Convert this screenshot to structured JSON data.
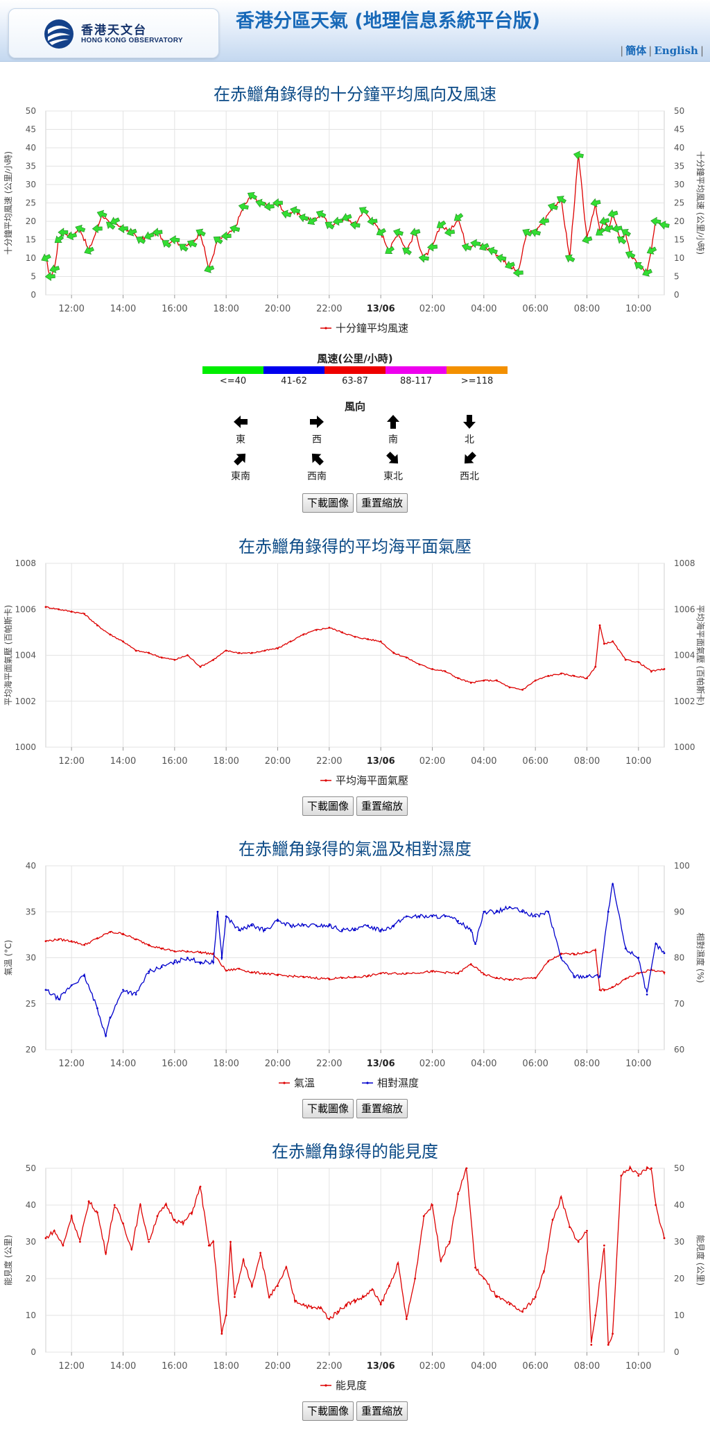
{
  "header": {
    "logo_cn": "香港天文台",
    "logo_en": "HONG KONG OBSERVATORY",
    "title": "香港分區天氣 (地理信息系統平台版)",
    "lang": [
      {
        "label": "簡体"
      },
      {
        "label": "English"
      }
    ]
  },
  "buttons": {
    "download": "下載圖像",
    "reset": "重置縮放"
  },
  "wind_legend": {
    "speed_title": "風速(公里/小時)",
    "bands": [
      {
        "label": "<=40",
        "color": "#00ee00"
      },
      {
        "label": "41-62",
        "color": "#0000ee"
      },
      {
        "label": "63-87",
        "color": "#ee0000"
      },
      {
        "label": "88-117",
        "color": "#ee00ee"
      },
      {
        "label": ">=118",
        "color": "#f39000"
      }
    ],
    "dir_title": "風向",
    "directions": [
      {
        "label": "東",
        "icon": "arrow-left-icon"
      },
      {
        "label": "西",
        "icon": "arrow-right-icon"
      },
      {
        "label": "南",
        "icon": "arrow-up-icon"
      },
      {
        "label": "北",
        "icon": "arrow-down-icon"
      },
      {
        "label": "東南",
        "icon": "arrow-up-left-icon"
      },
      {
        "label": "西南",
        "icon": "arrow-up-right-icon"
      },
      {
        "label": "東北",
        "icon": "arrow-down-left-icon"
      },
      {
        "label": "西北",
        "icon": "arrow-down-right-icon"
      }
    ]
  },
  "chart_data": [
    {
      "type": "line",
      "title": "在赤鱲角錄得的十分鐘平均風向及風速",
      "ylabel": "十分鐘平均風速 (公里/小時)",
      "ylabel_right": "十分鐘平均風速 (公里/小時)",
      "ylim": [
        0,
        50
      ],
      "yticks": [
        0,
        5,
        10,
        15,
        20,
        25,
        30,
        35,
        40,
        45,
        50
      ],
      "xticks": [
        "12:00",
        "14:00",
        "16:00",
        "18:00",
        "20:00",
        "22:00",
        "13/06",
        "02:00",
        "04:00",
        "06:00",
        "08:00",
        "10:00"
      ],
      "xrange_hours": [
        11,
        35
      ],
      "grid": true,
      "legend_position": "bottom",
      "series": [
        {
          "name": "十分鐘平均風速",
          "color": "#dd0000",
          "marker": "direction-arrow",
          "marker_color": "#33dd33",
          "x": [
            11.0,
            11.17,
            11.33,
            11.5,
            11.67,
            12.0,
            12.33,
            12.67,
            13.0,
            13.17,
            13.5,
            13.67,
            14.0,
            14.33,
            14.67,
            15.0,
            15.33,
            15.67,
            16.0,
            16.33,
            16.67,
            17.0,
            17.33,
            17.67,
            18.0,
            18.33,
            18.67,
            19.0,
            19.33,
            19.67,
            20.0,
            20.33,
            20.67,
            21.0,
            21.33,
            21.67,
            22.0,
            22.33,
            22.67,
            23.0,
            23.33,
            23.67,
            24.0,
            24.33,
            24.67,
            25.0,
            25.33,
            25.67,
            26.0,
            26.33,
            26.67,
            27.0,
            27.33,
            27.67,
            28.0,
            28.33,
            28.67,
            29.0,
            29.33,
            29.67,
            30.0,
            30.33,
            30.67,
            31.0,
            31.33,
            31.67,
            32.0,
            32.33,
            32.5,
            32.67,
            32.83,
            33.0,
            33.17,
            33.33,
            33.5,
            33.67,
            34.0,
            34.33,
            34.5,
            34.67,
            35.0
          ],
          "y": [
            10,
            5,
            7,
            15,
            17,
            16,
            18,
            12,
            18,
            22,
            19,
            20,
            18,
            17,
            15,
            16,
            17,
            14,
            15,
            13,
            14,
            17,
            7,
            15,
            16,
            18,
            24,
            27,
            25,
            24,
            25,
            22,
            23,
            21,
            20,
            22,
            19,
            20,
            21,
            19,
            23,
            20,
            17,
            12,
            17,
            12,
            17,
            10,
            13,
            19,
            17,
            21,
            13,
            14,
            13,
            12,
            10,
            8,
            6,
            17,
            17,
            20,
            24,
            26,
            10,
            38,
            15,
            25,
            17,
            20,
            18,
            22,
            18,
            15,
            17,
            11,
            8,
            6,
            12,
            20,
            19
          ]
        }
      ]
    },
    {
      "type": "line",
      "title": "在赤鱲角錄得的平均海平面氣壓",
      "ylabel": "平均海平面氣壓 (百帕斯卡)",
      "ylabel_right": "平均海平面氣壓 (百帕斯卡)",
      "ylim": [
        1000,
        1008
      ],
      "yticks": [
        1000,
        1002,
        1004,
        1006,
        1008
      ],
      "xticks": [
        "12:00",
        "14:00",
        "16:00",
        "18:00",
        "20:00",
        "22:00",
        "13/06",
        "02:00",
        "04:00",
        "06:00",
        "08:00",
        "10:00"
      ],
      "xrange_hours": [
        11,
        35
      ],
      "grid": true,
      "legend_position": "bottom",
      "series": [
        {
          "name": "平均海平面氣壓",
          "color": "#dd0000",
          "x": [
            11.0,
            11.5,
            12.0,
            12.5,
            13.0,
            13.5,
            14.0,
            14.5,
            15.0,
            15.5,
            16.0,
            16.5,
            17.0,
            17.5,
            18.0,
            18.5,
            19.0,
            19.5,
            20.0,
            20.5,
            21.0,
            21.5,
            22.0,
            22.5,
            23.0,
            23.5,
            24.0,
            24.5,
            25.0,
            25.5,
            26.0,
            26.5,
            27.0,
            27.5,
            28.0,
            28.5,
            29.0,
            29.5,
            30.0,
            30.5,
            31.0,
            31.5,
            32.0,
            32.33,
            32.5,
            32.67,
            33.0,
            33.5,
            34.0,
            34.5,
            35.0
          ],
          "y": [
            1006.1,
            1006.0,
            1005.9,
            1005.8,
            1005.3,
            1004.9,
            1004.6,
            1004.2,
            1004.1,
            1003.9,
            1003.8,
            1004.0,
            1003.5,
            1003.8,
            1004.2,
            1004.1,
            1004.1,
            1004.2,
            1004.3,
            1004.6,
            1004.9,
            1005.1,
            1005.2,
            1005.0,
            1004.8,
            1004.7,
            1004.6,
            1004.1,
            1003.9,
            1003.6,
            1003.4,
            1003.3,
            1003.0,
            1002.8,
            1002.9,
            1002.9,
            1002.6,
            1002.5,
            1002.9,
            1003.1,
            1003.2,
            1003.1,
            1003.0,
            1003.5,
            1005.3,
            1004.5,
            1004.6,
            1003.8,
            1003.7,
            1003.3,
            1003.4
          ]
        }
      ]
    },
    {
      "type": "line",
      "title": "在赤鱲角錄得的氣溫及相對濕度",
      "ylabel": "氣溫 (°C)",
      "ylabel_right": "相對濕度 (%)",
      "ylim": [
        20,
        40
      ],
      "ylim_right": [
        60,
        100
      ],
      "yticks": [
        20,
        25,
        30,
        35,
        40
      ],
      "yticks_right": [
        60,
        70,
        80,
        90,
        100
      ],
      "xticks": [
        "12:00",
        "14:00",
        "16:00",
        "18:00",
        "20:00",
        "22:00",
        "13/06",
        "02:00",
        "04:00",
        "06:00",
        "08:00",
        "10:00"
      ],
      "xrange_hours": [
        11,
        35
      ],
      "grid": true,
      "legend_position": "bottom",
      "series": [
        {
          "name": "氣溫",
          "color": "#dd0000",
          "axis": "left",
          "x": [
            11,
            11.5,
            12,
            12.5,
            13,
            13.5,
            14,
            14.5,
            15,
            15.5,
            16,
            16.5,
            17,
            17.5,
            18,
            18.5,
            19,
            19.5,
            20,
            21,
            22,
            22.5,
            23,
            23.5,
            24,
            25,
            26,
            27,
            27.5,
            28,
            28.5,
            29,
            30,
            30.5,
            31,
            31.5,
            32,
            32.33,
            32.5,
            32.67,
            33,
            33.5,
            34,
            34.5,
            35
          ],
          "y": [
            31.8,
            32.0,
            31.8,
            31.4,
            32.1,
            32.8,
            32.6,
            32.0,
            31.4,
            31.0,
            30.7,
            30.7,
            30.6,
            30.4,
            28.6,
            28.8,
            28.4,
            28.3,
            28.1,
            27.9,
            27.7,
            27.8,
            27.9,
            28.0,
            28.3,
            28.3,
            28.5,
            28.3,
            29.3,
            28.2,
            27.8,
            27.6,
            27.8,
            29.6,
            30.4,
            30.4,
            30.6,
            30.8,
            26.5,
            26.5,
            26.8,
            27.7,
            28.3,
            28.7,
            28.4
          ]
        },
        {
          "name": "相對濕度",
          "color": "#0000cc",
          "axis": "right",
          "x": [
            11,
            11.5,
            12,
            12.5,
            13,
            13.33,
            13.5,
            14,
            14.5,
            15,
            15.5,
            16,
            16.5,
            17,
            17.5,
            17.67,
            17.83,
            18,
            18.5,
            19,
            19.5,
            20,
            20.5,
            21,
            21.5,
            22,
            22.5,
            23,
            23.5,
            24,
            24.5,
            25,
            25.5,
            26,
            26.5,
            27,
            27.5,
            27.67,
            28,
            28.5,
            29,
            29.5,
            30,
            30.5,
            31,
            31.5,
            32,
            32.5,
            32.83,
            33,
            33.5,
            34,
            34.33,
            34.67,
            35
          ],
          "y": [
            73,
            71,
            74,
            76,
            69,
            63,
            67,
            73,
            72,
            77,
            78,
            79,
            80,
            79,
            79,
            90,
            80,
            89,
            86,
            87,
            86,
            88,
            87,
            87,
            87,
            87,
            86,
            86,
            87,
            86,
            87,
            89,
            89,
            89,
            89,
            88,
            86,
            83,
            90,
            90,
            91,
            90,
            89,
            90,
            80,
            76,
            76,
            76,
            90,
            96,
            82,
            80,
            72,
            83,
            81
          ]
        }
      ]
    },
    {
      "type": "line",
      "title": "在赤鱲角錄得的能見度",
      "ylabel": "能見度 (公里)",
      "ylabel_right": "能見度 (公里)",
      "ylim": [
        0,
        50
      ],
      "yticks": [
        0,
        10,
        20,
        30,
        40,
        50
      ],
      "xticks": [
        "12:00",
        "14:00",
        "16:00",
        "18:00",
        "20:00",
        "22:00",
        "13/06",
        "02:00",
        "04:00",
        "06:00",
        "08:00",
        "10:00"
      ],
      "xrange_hours": [
        11,
        35
      ],
      "grid": true,
      "legend_position": "bottom",
      "series": [
        {
          "name": "能見度",
          "color": "#dd0000",
          "x": [
            11,
            11.33,
            11.67,
            12,
            12.33,
            12.67,
            13,
            13.33,
            13.67,
            14,
            14.33,
            14.67,
            15,
            15.33,
            15.67,
            16,
            16.33,
            16.67,
            17,
            17.33,
            17.5,
            17.83,
            18,
            18.17,
            18.33,
            18.67,
            19,
            19.33,
            19.67,
            20,
            20.33,
            20.67,
            21,
            21.33,
            21.67,
            22,
            22.33,
            22.67,
            23,
            23.33,
            23.67,
            24,
            24.33,
            24.67,
            25,
            25.33,
            25.67,
            26,
            26.33,
            26.67,
            27,
            27.33,
            27.67,
            28,
            28.5,
            29,
            29.5,
            30,
            30.33,
            30.67,
            31,
            31.33,
            31.67,
            32,
            32.17,
            32.33,
            32.67,
            32.83,
            33,
            33.33,
            33.67,
            34,
            34.33,
            34.5,
            34.67,
            35
          ],
          "y": [
            31,
            33,
            29,
            37,
            30,
            41,
            38,
            27,
            40,
            35,
            28,
            40,
            30,
            37,
            40,
            36,
            35,
            38,
            45,
            29,
            30,
            5,
            10,
            30,
            15,
            25,
            18,
            27,
            15,
            18,
            23,
            14,
            13,
            12,
            12,
            9,
            11,
            13,
            14,
            15,
            17,
            13,
            18,
            24,
            9,
            20,
            37,
            40,
            25,
            30,
            43,
            50,
            23,
            20,
            15,
            13,
            11,
            15,
            22,
            36,
            42,
            34,
            30,
            33,
            2,
            10,
            29,
            2,
            5,
            48,
            50,
            48,
            50,
            50,
            40,
            31
          ]
        }
      ]
    }
  ]
}
